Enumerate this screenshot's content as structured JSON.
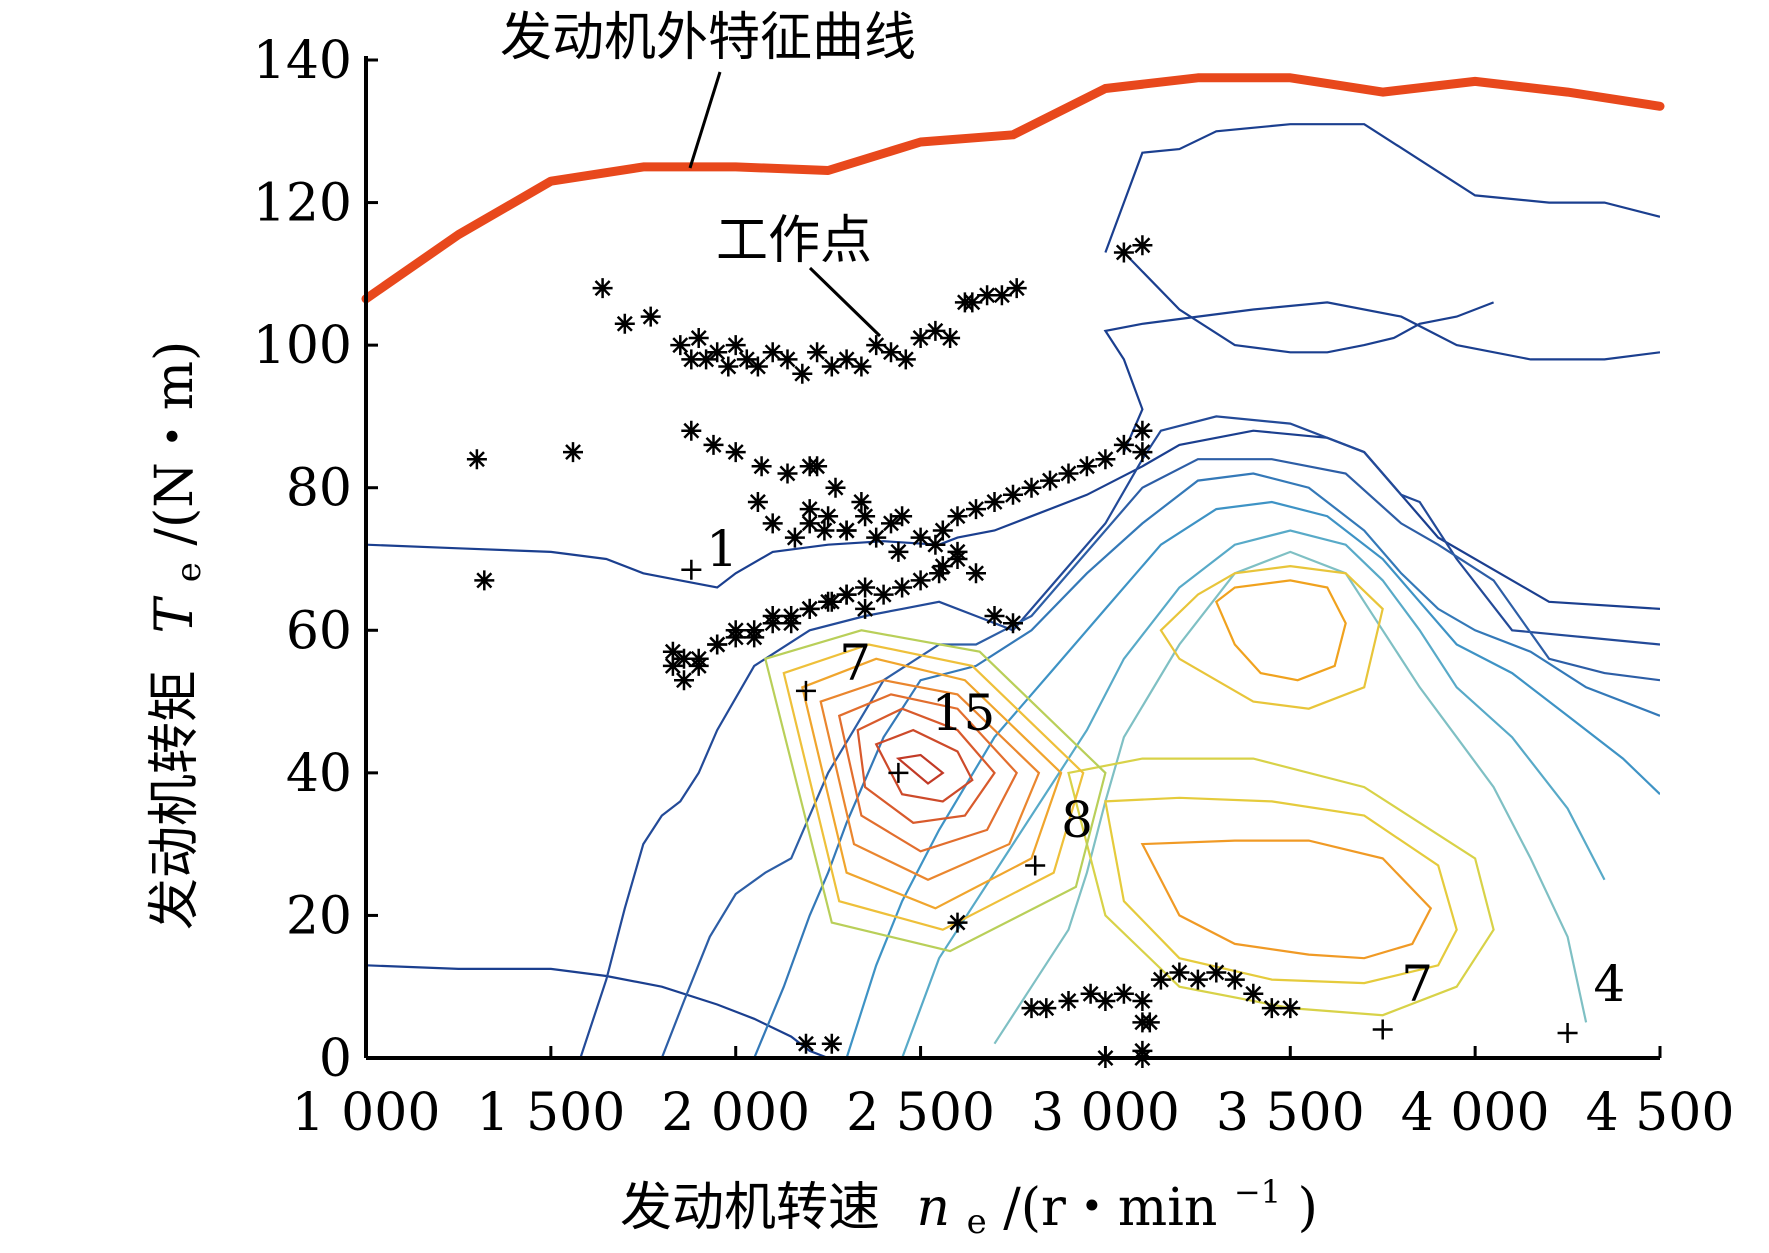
{
  "chart_data": {
    "type": "scatter",
    "title": "",
    "xlabel": "发动机转速 ne/(r・min⁻¹)",
    "xlabel_main": "发动机转速",
    "xlabel_symbol": "n",
    "xlabel_sub": "e",
    "xlabel_unit_open": "/(r・min",
    "xlabel_unit_sup": "−1",
    "xlabel_unit_close": ")",
    "ylabel": "发动机转矩 Te/(N・m)",
    "ylabel_main": "发动机转矩",
    "ylabel_symbol": "T",
    "ylabel_sub": "e",
    "ylabel_unit": "/(N・m)",
    "xlim": [
      1000,
      4500
    ],
    "ylim": [
      0,
      140
    ],
    "x_ticks": [
      1000,
      1500,
      2000,
      2500,
      3000,
      3500,
      4000,
      4500
    ],
    "x_tick_labels": [
      "1 000",
      "1 500",
      "2 000",
      "2 500",
      "3 000",
      "3 500",
      "4 000",
      "4 500"
    ],
    "y_ticks": [
      0,
      20,
      40,
      60,
      80,
      100,
      120,
      140
    ],
    "y_tick_labels": [
      "0",
      "20",
      "40",
      "60",
      "80",
      "100",
      "120",
      "140"
    ],
    "grid": false,
    "annotations": {
      "curve_label": "发动机外特征曲线",
      "points_label": "工作点"
    },
    "external_characteristic": {
      "color": "#e8481c",
      "x": [
        1000,
        1250,
        1500,
        1750,
        2000,
        2250,
        2500,
        2750,
        3000,
        3250,
        3500,
        3750,
        4000,
        4250,
        4500
      ],
      "y": [
        106.5,
        115.5,
        123,
        125,
        125,
        124.5,
        128.5,
        129.5,
        136,
        137.5,
        137.5,
        135.5,
        137,
        135.5,
        133.5
      ]
    },
    "contour_labels": [
      {
        "text": "1",
        "x": 1920,
        "y": 69
      },
      {
        "text": "7",
        "x": 2280,
        "y": 53
      },
      {
        "text": "15",
        "x": 2530,
        "y": 46
      },
      {
        "text": "8",
        "x": 2880,
        "y": 31
      },
      {
        "text": "7",
        "x": 3800,
        "y": 8
      },
      {
        "text": "4",
        "x": 4320,
        "y": 8
      }
    ],
    "label_markers": [
      {
        "x": 1880,
        "y": 68.5
      },
      {
        "x": 2190,
        "y": 51.5
      },
      {
        "x": 2440,
        "y": 40
      },
      {
        "x": 2810,
        "y": 27
      },
      {
        "x": 3750,
        "y": 4
      },
      {
        "x": 4250,
        "y": 3.5
      }
    ],
    "contours": [
      {
        "level": 1,
        "color": "#1b3f8f",
        "x": [
          1000,
          1250,
          1500,
          1650,
          1750,
          1850,
          1950,
          2000,
          2100,
          2250,
          2400,
          2550,
          2600,
          2700,
          2800,
          2950,
          3100,
          3200,
          3400,
          3600,
          3700,
          3900,
          4200,
          4500
        ],
        "y": [
          72,
          71.5,
          71,
          70,
          68,
          67,
          66,
          68,
          71,
          72,
          72.5,
          72,
          73,
          74,
          76,
          79,
          83,
          86,
          88,
          87,
          85,
          73,
          64,
          63
        ]
      },
      {
        "level": 1,
        "color": "#1b3f8f",
        "x": [
          1000,
          1250,
          1500,
          1650,
          1800,
          1950,
          2050,
          2150,
          2200,
          2250
        ],
        "y": [
          13,
          12.5,
          12.5,
          11.5,
          10,
          7.5,
          5.5,
          3,
          1,
          0
        ]
      },
      {
        "level": 1,
        "color": "#1b3f8f",
        "x": [
          3050,
          3100,
          3050,
          3000,
          3100,
          3250,
          3400,
          3600,
          3800,
          3950,
          4150,
          4350,
          4500
        ],
        "y": [
          85,
          91,
          98,
          102,
          103,
          104,
          105,
          106,
          104,
          100,
          98,
          98,
          99
        ]
      },
      {
        "level": 1,
        "color": "#1b3f8f",
        "x": [
          3000,
          3050,
          3100,
          3200,
          3300,
          3500,
          3700,
          3850,
          4000,
          4200,
          4350,
          4500
        ],
        "y": [
          113,
          120,
          127,
          127.5,
          130,
          131,
          131,
          126,
          121,
          120,
          120,
          118
        ]
      },
      {
        "level": 1,
        "color": "#1b3f8f",
        "x": [
          3050,
          3200,
          3350,
          3500,
          3600,
          3700,
          3780,
          3850,
          3950,
          4050
        ],
        "y": [
          113,
          105,
          100,
          99,
          99,
          100,
          101,
          103,
          104,
          106
        ]
      }
    ],
    "contours_inner": [
      {
        "level": 2,
        "color": "#234a98",
        "x": [
          1580,
          1650,
          1700,
          1750,
          1800,
          1850,
          1900,
          1950,
          2050,
          2200,
          2350,
          2450,
          2550,
          2650,
          2750,
          2850,
          3000,
          3100,
          3150,
          3300,
          3500,
          3700,
          3800,
          3850,
          3950,
          4100,
          4300,
          4500
        ],
        "y": [
          0,
          11,
          21,
          30,
          34,
          36,
          40,
          46,
          55,
          60,
          62,
          63,
          64,
          62,
          60,
          66,
          75,
          84,
          88,
          90,
          89,
          85,
          79,
          78,
          70,
          60,
          59,
          58
        ]
      },
      {
        "level": 3,
        "color": "#2d5ea6",
        "x": [
          1800,
          1860,
          1930,
          2000,
          2080,
          2150,
          2250,
          2400,
          2550,
          2650,
          2800,
          2950,
          3100,
          3250,
          3450,
          3650,
          3800,
          3900,
          4050,
          4200,
          4350,
          4500
        ],
        "y": [
          0,
          8,
          17,
          23,
          26,
          28,
          40,
          53,
          58,
          58,
          62,
          71,
          80,
          84,
          84,
          82,
          75,
          72,
          67,
          56,
          54,
          53
        ]
      },
      {
        "level": 4,
        "color": "#3479b8",
        "x": [
          2050,
          2130,
          2200,
          2250,
          2300,
          2400,
          2500,
          2650,
          2800,
          2950,
          3100,
          3250,
          3400,
          3550,
          3700,
          3800,
          3900,
          4000,
          4150,
          4300,
          4500
        ],
        "y": [
          0,
          10,
          20,
          26,
          33,
          45,
          53,
          55,
          60,
          68,
          75,
          81,
          82,
          80,
          74,
          68,
          63,
          60,
          57,
          52,
          48
        ]
      },
      {
        "level": 5,
        "color": "#3e93c5",
        "x": [
          2300,
          2380,
          2450,
          2550,
          2700,
          2850,
          3000,
          3150,
          3300,
          3450,
          3600,
          3750,
          3850,
          3950,
          4100,
          4250,
          4400,
          4500
        ],
        "y": [
          0,
          13,
          22,
          32,
          45,
          54,
          63,
          72,
          77,
          78,
          76,
          70,
          64,
          58,
          54,
          48,
          42,
          37
        ]
      },
      {
        "level": 6,
        "color": "#58aac8",
        "x": [
          2450,
          2550,
          2650,
          2750,
          2850,
          2950,
          3050,
          3200,
          3350,
          3500,
          3650,
          3750,
          3850,
          3950,
          4100,
          4250,
          4350
        ],
        "y": [
          0,
          14,
          22,
          30,
          38,
          46,
          56,
          66,
          72,
          74,
          72,
          67,
          60,
          52,
          45,
          35,
          25
        ]
      },
      {
        "level": 7,
        "color": "#7fc0c4",
        "x": [
          2700,
          2800,
          2900,
          2950,
          3000,
          3050,
          3200,
          3350,
          3500,
          3650,
          3750,
          3850,
          3950,
          4050,
          4150,
          4250,
          4300
        ],
        "y": [
          2,
          10,
          18,
          26,
          36,
          45,
          58,
          68,
          71,
          68,
          60,
          52,
          45,
          38,
          28,
          17,
          5
        ]
      }
    ],
    "islands": [
      {
        "color": "#f0a21e",
        "x": [
          3300,
          3350,
          3500,
          3600,
          3650,
          3620,
          3520,
          3420,
          3350,
          3300
        ],
        "y": [
          64,
          66,
          67,
          66,
          61,
          55,
          53,
          54,
          58,
          64
        ]
      },
      {
        "color": "#e8c53a",
        "x": [
          3250,
          3350,
          3500,
          3650,
          3750,
          3700,
          3550,
          3400,
          3300,
          3200,
          3150,
          3250
        ],
        "y": [
          65,
          68,
          69,
          68,
          63,
          52,
          49,
          50,
          53,
          56,
          60,
          65
        ]
      },
      {
        "color": "#f09a25",
        "x": [
          3100,
          3350,
          3550,
          3750,
          3880,
          3830,
          3700,
          3550,
          3350,
          3200,
          3100
        ],
        "y": [
          30,
          30.5,
          30.5,
          28,
          21,
          16,
          14,
          14.5,
          16,
          20,
          30
        ]
      },
      {
        "color": "#e5cb3c",
        "x": [
          3000,
          3200,
          3450,
          3700,
          3900,
          3950,
          3900,
          3700,
          3450,
          3200,
          3050,
          3000
        ],
        "y": [
          36,
          36.5,
          36,
          34,
          27,
          18,
          13,
          10.5,
          11,
          14,
          22,
          36
        ]
      },
      {
        "color": "#d8d248",
        "x": [
          2900,
          3100,
          3400,
          3700,
          4000,
          4050,
          3950,
          3750,
          3500,
          3200,
          3000,
          2900
        ],
        "y": [
          40,
          42,
          42,
          38,
          28,
          18,
          10,
          6,
          7,
          10,
          20,
          40
        ]
      },
      {
        "color": "#c23a26",
        "x": [
          2440,
          2500,
          2560,
          2520,
          2440
        ],
        "y": [
          42,
          42.5,
          40,
          38.5,
          42
        ]
      },
      {
        "color": "#cd4a2a",
        "x": [
          2380,
          2480,
          2600,
          2640,
          2560,
          2450,
          2380
        ],
        "y": [
          44,
          46,
          43,
          39,
          36,
          37,
          44
        ]
      },
      {
        "color": "#d85a2c",
        "x": [
          2330,
          2450,
          2600,
          2700,
          2620,
          2480,
          2350,
          2330
        ],
        "y": [
          46,
          49,
          46,
          40,
          34,
          33,
          38,
          46
        ]
      },
      {
        "color": "#e26e2e",
        "x": [
          2280,
          2420,
          2600,
          2760,
          2680,
          2500,
          2340,
          2280
        ],
        "y": [
          48,
          51,
          49,
          40,
          32,
          29,
          34,
          48
        ]
      },
      {
        "color": "#ea862e",
        "x": [
          2230,
          2400,
          2600,
          2820,
          2740,
          2520,
          2320,
          2230
        ],
        "y": [
          50,
          53,
          51,
          40,
          30,
          25,
          30,
          50
        ]
      },
      {
        "color": "#f0a52d",
        "x": [
          2180,
          2380,
          2620,
          2880,
          2800,
          2540,
          2300,
          2180
        ],
        "y": [
          52,
          56,
          53,
          40,
          28,
          21,
          26,
          52
        ]
      },
      {
        "color": "#eec03a",
        "x": [
          2130,
          2360,
          2640,
          2940,
          2860,
          2560,
          2280,
          2130
        ],
        "y": [
          54,
          58,
          55,
          40,
          26,
          18,
          22,
          54
        ]
      },
      {
        "color": "#b9cf59",
        "x": [
          2080,
          2340,
          2660,
          3000,
          2920,
          2580,
          2260,
          2080
        ],
        "y": [
          56,
          60,
          57,
          40,
          24,
          15,
          19,
          56
        ]
      }
    ],
    "series": [
      {
        "name": "工作点",
        "marker": "*",
        "color": "#000000",
        "x": [
          1300,
          1320,
          1560,
          1640,
          1700,
          1770,
          1850,
          1880,
          1900,
          1920,
          1950,
          1980,
          2000,
          2030,
          2060,
          2100,
          2140,
          2180,
          2220,
          2260,
          2300,
          2340,
          2380,
          2420,
          2460,
          2500,
          2540,
          2580,
          2620,
          2640,
          2680,
          2720,
          2760,
          1830,
          1860,
          1900,
          1950,
          2000,
          2050,
          2100,
          2150,
          2200,
          2250,
          2300,
          2350,
          1880,
          1940,
          2000,
          2070,
          2140,
          2200,
          2220,
          2270,
          2340,
          2450,
          2560,
          2600,
          2650,
          2700,
          2750,
          2800,
          2850,
          2900,
          2950,
          3000,
          3050,
          3100,
          3100,
          1830,
          1860,
          1900,
          1950,
          2000,
          2050,
          2100,
          2150,
          2200,
          2260,
          2300,
          2350,
          2400,
          2450,
          2500,
          2550,
          2600,
          2650,
          2700,
          2750,
          2200,
          2250,
          2300,
          2350,
          2420,
          2500,
          2540,
          2600,
          3050,
          3100,
          2060,
          2100,
          2160,
          2200,
          2240,
          2300,
          2380,
          2440,
          2560,
          2800,
          2840,
          2900,
          2960,
          3000,
          3050,
          3100,
          3150,
          3200,
          3250,
          3300,
          3350,
          3400,
          3450,
          3500,
          3100,
          3100,
          3120,
          2190,
          2260,
          3000,
          3100,
          2600
        ],
        "y": [
          84,
          67,
          85,
          108,
          103,
          104,
          100,
          98,
          101,
          98,
          99,
          97,
          100,
          98,
          97,
          99,
          98,
          96,
          99,
          97,
          98,
          97,
          100,
          99,
          98,
          101,
          102,
          101,
          106,
          106,
          107,
          107,
          108,
          55,
          53,
          56,
          58,
          59,
          60,
          61,
          62,
          63,
          64,
          65,
          66,
          88,
          86,
          85,
          83,
          82,
          83,
          83,
          80,
          78,
          76,
          74,
          76,
          77,
          78,
          79,
          80,
          81,
          82,
          83,
          84,
          86,
          88,
          85,
          57,
          56,
          55,
          58,
          60,
          59,
          62,
          61,
          63,
          64,
          65,
          63,
          65,
          66,
          67,
          68,
          70,
          68,
          62,
          61,
          75,
          76,
          74,
          76,
          75,
          73,
          72,
          71,
          113,
          114,
          78,
          75,
          73,
          77,
          74,
          74,
          73,
          71,
          69,
          7,
          7,
          8,
          9,
          8,
          9,
          8,
          11,
          12,
          11,
          12,
          11,
          9,
          7,
          7,
          5,
          1,
          5,
          2,
          2,
          0,
          0,
          19
        ]
      }
    ]
  }
}
